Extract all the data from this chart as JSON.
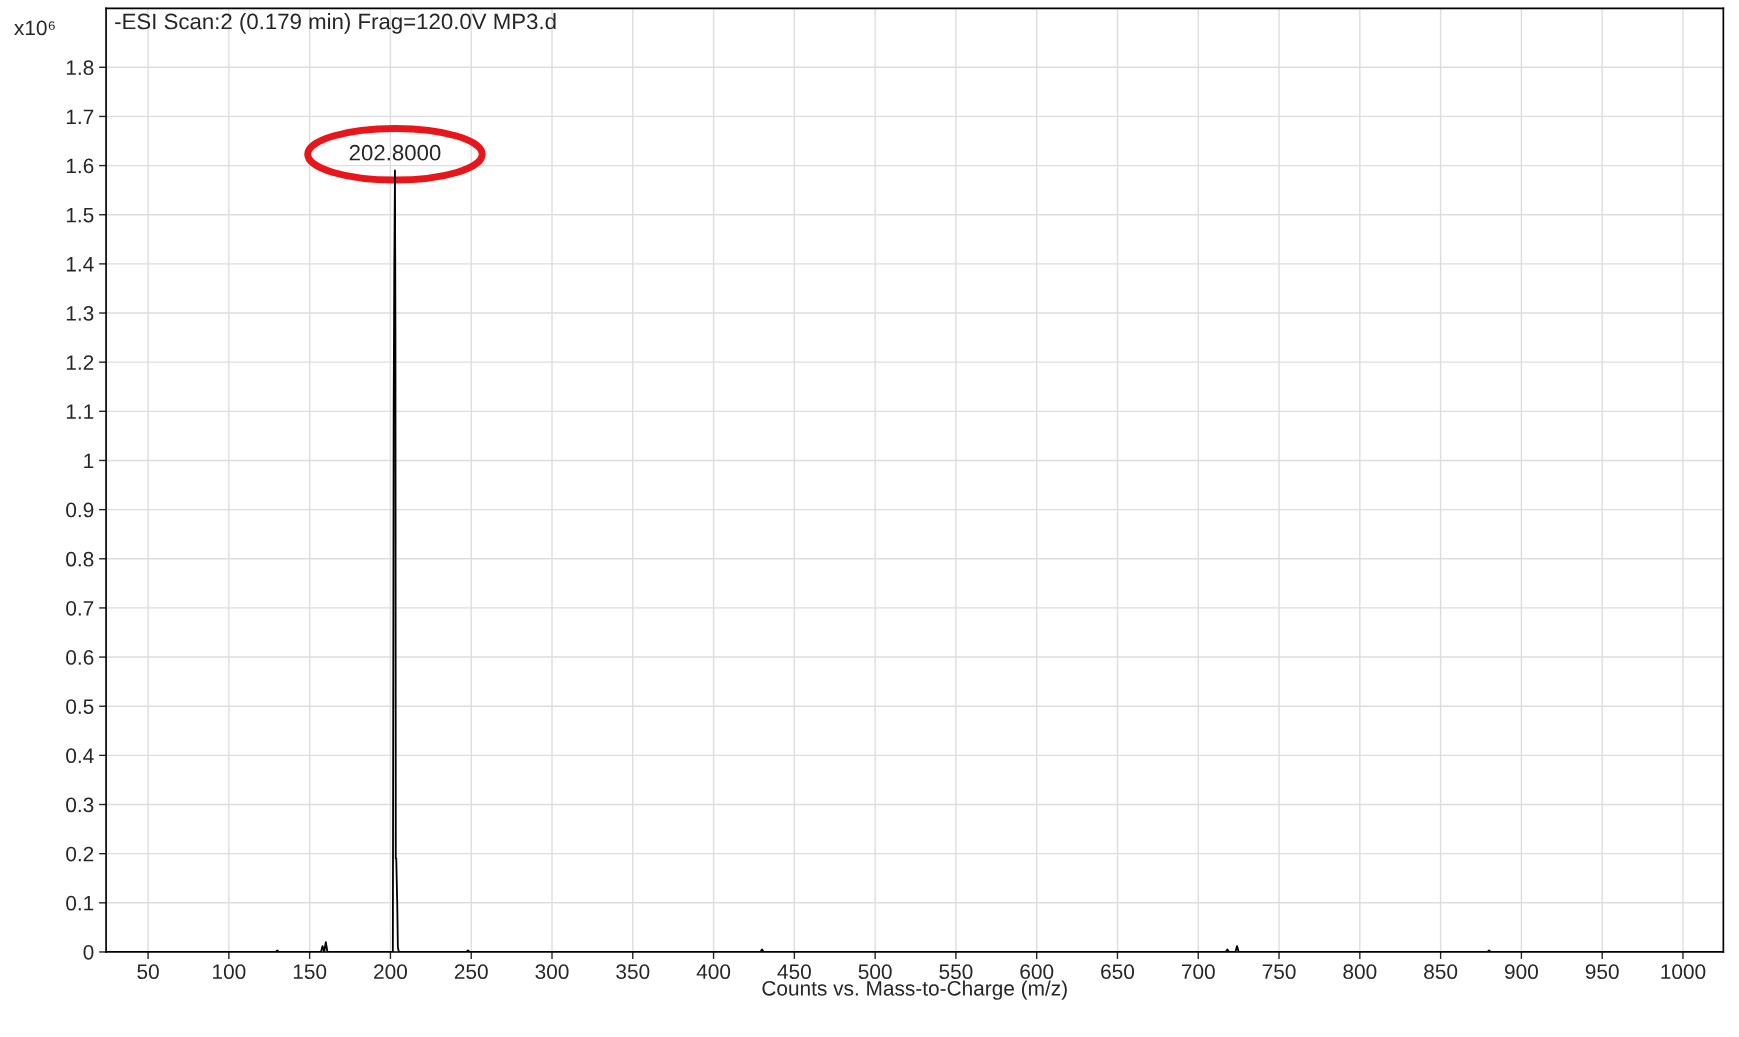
{
  "chart_data": {
    "type": "line",
    "title": "-ESI Scan:2 (0.179 min) Frag=120.0V MP3.d",
    "xlabel": "Counts vs. Mass-to-Charge (m/z)",
    "ylabel": "x10⁶",
    "series": [
      {
        "color": "#000000",
        "x": [
          24,
          129,
          130,
          131,
          157,
          158,
          159,
          160,
          161,
          201.5,
          202,
          202.4,
          202.8,
          203.1,
          203.3,
          203.6,
          204.2,
          204.6,
          205.2,
          247,
          248,
          249,
          429,
          430,
          431,
          717,
          718,
          719,
          723,
          724,
          725,
          879,
          880,
          881,
          1025
        ],
        "values": [
          0,
          0,
          0.003,
          0,
          0,
          0.012,
          0,
          0.02,
          0,
          0,
          1.1,
          1.4,
          1.59,
          1.25,
          0.19,
          0.19,
          0.1,
          0.01,
          0,
          0,
          0.003,
          0,
          0,
          0.005,
          0,
          0,
          0.005,
          0,
          0,
          0.012,
          0,
          0,
          0.003,
          0,
          0
        ]
      }
    ],
    "annotations": [
      {
        "text": "202.8000",
        "x": 202.8,
        "y": 1.59
      }
    ],
    "xlim": [
      24,
      1025
    ],
    "ylim": [
      0,
      1.92
    ],
    "xticks": [
      50,
      100,
      150,
      200,
      250,
      300,
      350,
      400,
      450,
      500,
      550,
      600,
      650,
      700,
      750,
      800,
      850,
      900,
      950,
      1000
    ],
    "yticks": [
      0,
      0.1,
      0.2,
      0.3,
      0.4,
      0.5,
      0.6,
      0.7,
      0.8,
      0.9,
      1,
      1.1,
      1.2,
      1.3,
      1.4,
      1.5,
      1.6,
      1.7,
      1.8
    ],
    "grid": true
  }
}
